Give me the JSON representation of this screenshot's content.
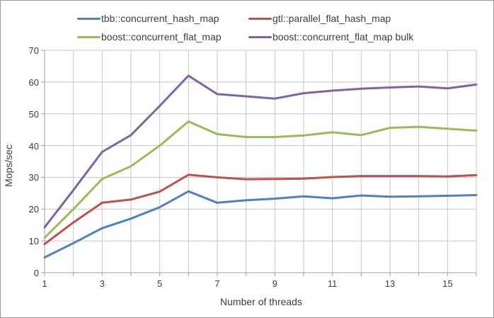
{
  "chart_data": {
    "type": "line",
    "title": "",
    "xlabel": "Number of threads",
    "ylabel": "Mops/sec",
    "x": [
      1,
      2,
      3,
      4,
      5,
      6,
      7,
      8,
      9,
      10,
      11,
      12,
      13,
      14,
      15,
      16
    ],
    "xlim": [
      1,
      16
    ],
    "ylim": [
      0,
      70
    ],
    "x_tick_labels": [
      "1",
      "3",
      "5",
      "7",
      "9",
      "11",
      "13",
      "15"
    ],
    "x_tick_label_values": [
      1,
      3,
      5,
      7,
      9,
      11,
      13,
      15
    ],
    "y_ticks": [
      0,
      10,
      20,
      30,
      40,
      50,
      60,
      70
    ],
    "grid": true,
    "legend_position": "top",
    "series": [
      {
        "name": "tbb::concurrent_hash_map",
        "color": "#4F81BD",
        "values": [
          4.8,
          9.3,
          14.0,
          17.0,
          20.6,
          25.6,
          22.0,
          22.8,
          23.3,
          24.0,
          23.4,
          24.3,
          23.9,
          24.0,
          24.2,
          24.4
        ]
      },
      {
        "name": "gtl::parallel_flat_hash_map",
        "color": "#C0504D",
        "values": [
          9.0,
          15.8,
          22.0,
          23.0,
          25.5,
          30.8,
          30.0,
          29.4,
          29.5,
          29.6,
          30.1,
          30.4,
          30.4,
          30.4,
          30.3,
          30.7
        ]
      },
      {
        "name": "boost::concurrent_flat_map",
        "color": "#9BBB59",
        "values": [
          11.0,
          20.0,
          29.5,
          33.5,
          40.0,
          47.6,
          43.6,
          42.7,
          42.7,
          43.2,
          44.2,
          43.3,
          45.6,
          45.9,
          45.3,
          44.7
        ]
      },
      {
        "name": "boost::concurrent_flat_map bulk",
        "color": "#8064A2",
        "values": [
          14.3,
          26.0,
          38.0,
          43.3,
          52.5,
          62.0,
          56.2,
          55.5,
          54.8,
          56.5,
          57.3,
          57.9,
          58.3,
          58.6,
          58.0,
          59.2
        ]
      }
    ]
  },
  "style": {
    "grid_color": "#C6C6C6",
    "axis_color": "#9E9E9E",
    "text_color": "#3D3D3D",
    "background": "#FFFFFF",
    "border_color": "#999999"
  }
}
